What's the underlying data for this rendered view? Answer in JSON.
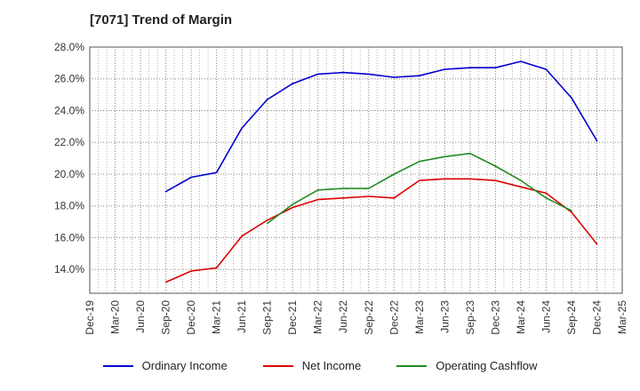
{
  "chart_data": {
    "type": "line",
    "title": "[7071]  Trend of Margin",
    "xlabel": "",
    "ylabel": "",
    "ylim": [
      12.5,
      28.0
    ],
    "yticks": [
      "14.0%",
      "16.0%",
      "18.0%",
      "20.0%",
      "22.0%",
      "24.0%",
      "26.0%",
      "28.0%"
    ],
    "ytick_values": [
      14,
      16,
      18,
      20,
      22,
      24,
      26,
      28
    ],
    "categories": [
      "Dec-19",
      "Mar-20",
      "Jun-20",
      "Sep-20",
      "Dec-20",
      "Mar-21",
      "Jun-21",
      "Sep-21",
      "Dec-21",
      "Mar-22",
      "Jun-22",
      "Sep-22",
      "Dec-22",
      "Mar-23",
      "Jun-23",
      "Sep-23",
      "Dec-23",
      "Mar-24",
      "Jun-24",
      "Sep-24",
      "Dec-24",
      "Mar-25"
    ],
    "grid": true,
    "legend_position": "bottom",
    "series": [
      {
        "name": "Ordinary Income",
        "color": "#0000cc",
        "values": [
          null,
          null,
          null,
          18.9,
          19.8,
          20.1,
          22.9,
          24.7,
          25.7,
          26.3,
          26.4,
          26.3,
          26.1,
          26.2,
          26.6,
          26.7,
          26.7,
          27.1,
          26.6,
          24.8,
          22.1,
          null
        ]
      },
      {
        "name": "Net Income",
        "color": "#dd0000",
        "values": [
          null,
          null,
          null,
          13.2,
          13.9,
          14.1,
          16.1,
          17.1,
          17.9,
          18.4,
          18.5,
          18.6,
          18.5,
          19.6,
          19.7,
          19.7,
          19.6,
          19.2,
          18.8,
          17.6,
          15.6,
          null
        ]
      },
      {
        "name": "Operating Cashflow",
        "color": "#228b22",
        "values": [
          null,
          null,
          null,
          null,
          null,
          null,
          null,
          16.9,
          18.1,
          19.0,
          19.1,
          19.1,
          20.0,
          20.8,
          21.1,
          21.3,
          20.5,
          19.6,
          18.5,
          17.7,
          null,
          null
        ]
      }
    ]
  }
}
